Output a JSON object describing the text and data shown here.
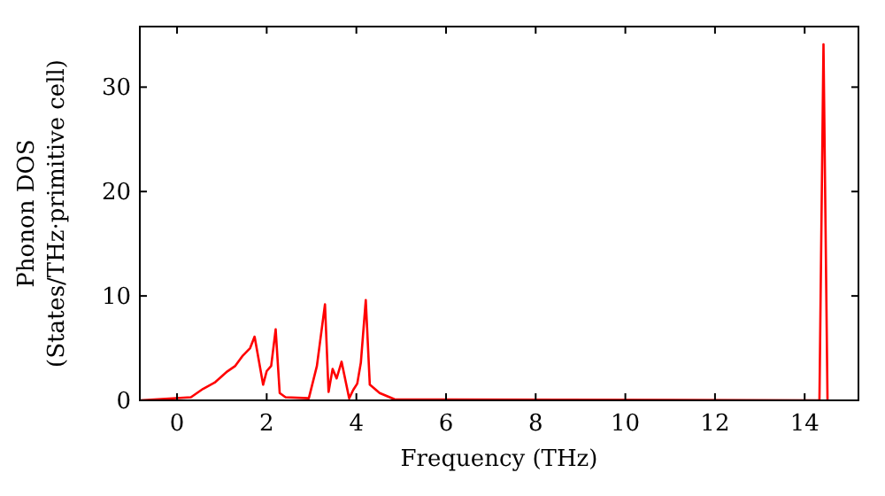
{
  "chart_data": {
    "type": "line",
    "xlabel": "Frequency (THz)",
    "ylabel": "Phonon DOS\n(States/THz·primitive cell)",
    "xlim": [
      -0.83,
      15.2
    ],
    "ylim": [
      0,
      35.8
    ],
    "xticks": [
      0,
      2,
      4,
      6,
      8,
      10,
      12,
      14
    ],
    "yticks": [
      0,
      10,
      20,
      30
    ],
    "grid": false,
    "series": [
      {
        "color": "#ff0000",
        "x": [
          -0.83,
          0.31,
          0.58,
          0.84,
          1.1,
          1.3,
          1.47,
          1.63,
          1.73,
          1.92,
          2.0,
          2.1,
          2.2,
          2.29,
          2.42,
          2.94,
          3.12,
          3.3,
          3.38,
          3.47,
          3.56,
          3.67,
          3.84,
          3.93,
          4.02,
          4.1,
          4.21,
          4.3,
          4.52,
          4.85,
          14.33,
          14.42,
          14.51
        ],
        "values": [
          0,
          0.3,
          1.1,
          1.7,
          2.7,
          3.3,
          4.3,
          5.0,
          6.1,
          1.5,
          2.8,
          3.3,
          6.8,
          0.7,
          0.3,
          0.2,
          3.3,
          9.2,
          0.8,
          3.0,
          2.1,
          3.7,
          0.2,
          1.0,
          1.6,
          3.6,
          9.6,
          1.5,
          0.7,
          0.1,
          0,
          34.1,
          0
        ]
      }
    ]
  }
}
